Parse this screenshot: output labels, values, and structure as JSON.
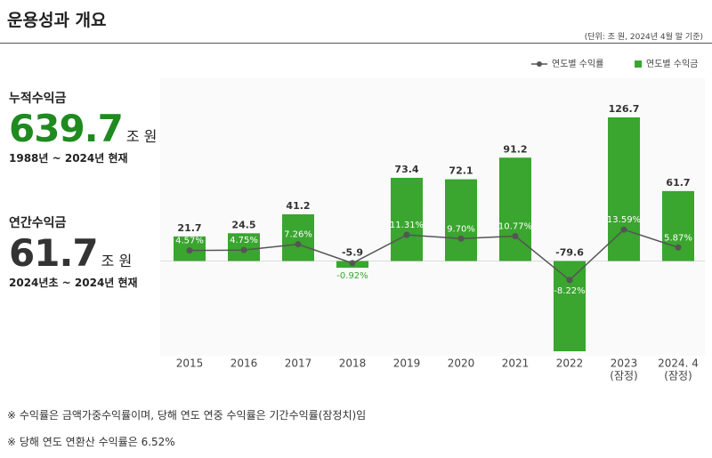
{
  "header": {
    "title": "운용성과 개요",
    "unit": "(단위: 조 원, 2024년 4월 말 기준)"
  },
  "summary": [
    {
      "label": "누적수익금",
      "value": 639.7,
      "unit": "조 원",
      "period": "1988년 ~ 2024년 현재",
      "color": "#1f8a1f"
    },
    {
      "label": "연간수익금",
      "value": 61.7,
      "unit": "조 원",
      "period": "2024년초 ~ 2024년 현재",
      "color": "#333333"
    }
  ],
  "chart_data": {
    "type": "combo",
    "categories": [
      "2015",
      "2016",
      "2017",
      "2018",
      "2019",
      "2020",
      "2021",
      "2022",
      [
        "2023",
        "(잠정)"
      ],
      [
        "2024. 4",
        "(잠정)"
      ]
    ],
    "series": [
      {
        "name": "연도별 수익률",
        "type": "line",
        "color": "#555555",
        "values": [
          4.57,
          4.75,
          7.26,
          -0.92,
          11.31,
          9.7,
          10.77,
          -8.22,
          13.59,
          5.87
        ],
        "value_labels": [
          "4.57%",
          "4.75%",
          "7.26%",
          "-0.92%",
          "11.31%",
          "9.70%",
          "10.77%",
          "-8.22%",
          "13.59%",
          "5.87%"
        ]
      },
      {
        "name": "연도별 수익금",
        "type": "bar",
        "color": "#3aa52f",
        "values": [
          21.7,
          24.5,
          41.2,
          -5.9,
          73.4,
          72.1,
          91.2,
          -79.6,
          126.7,
          61.7
        ]
      }
    ]
  },
  "notes": [
    "※ 수익률은 금액가중수익률이며, 당해 연도 연중 수익률은 기간수익률(잠정치)임",
    "※ 당해 연도 연환산 수익률은 6.52%"
  ]
}
